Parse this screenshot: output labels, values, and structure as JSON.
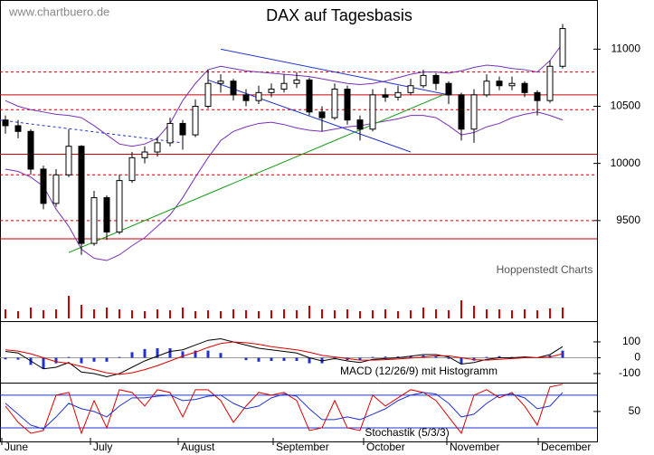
{
  "chart_data": {
    "type": "candlestick",
    "title": "DAX auf Tagesbasis",
    "source": "www.chartbuero.de",
    "credit": "Hoppenstedt Charts",
    "months": [
      "June",
      "July",
      "August",
      "September",
      "October",
      "November",
      "December"
    ],
    "ylim": [
      8620,
      11430
    ],
    "yticks": [
      9500,
      10000,
      10500,
      11000
    ],
    "candles": [
      [
        10380,
        10420,
        10260,
        10330
      ],
      [
        10330,
        10380,
        10220,
        10280
      ],
      [
        10280,
        10300,
        9900,
        9950
      ],
      [
        9950,
        9980,
        9600,
        9650
      ],
      [
        9650,
        9950,
        9620,
        9900
      ],
      [
        9900,
        10300,
        9880,
        10150
      ],
      [
        10150,
        10160,
        9200,
        9300
      ],
      [
        9300,
        9760,
        9280,
        9700
      ],
      [
        9700,
        9720,
        9330,
        9400
      ],
      [
        9400,
        9900,
        9380,
        9850
      ],
      [
        9850,
        10100,
        9830,
        10050
      ],
      [
        10050,
        10150,
        10000,
        10100
      ],
      [
        10100,
        10230,
        10060,
        10180
      ],
      [
        10180,
        10400,
        10150,
        10350
      ],
      [
        10350,
        10380,
        10120,
        10250
      ],
      [
        10250,
        10560,
        10230,
        10500
      ],
      [
        10500,
        10820,
        10480,
        10700
      ],
      [
        10700,
        10780,
        10620,
        10720
      ],
      [
        10720,
        10740,
        10550,
        10600
      ],
      [
        10600,
        10650,
        10500,
        10550
      ],
      [
        10550,
        10680,
        10520,
        10620
      ],
      [
        10620,
        10700,
        10580,
        10650
      ],
      [
        10650,
        10780,
        10620,
        10700
      ],
      [
        10700,
        10800,
        10660,
        10730
      ],
      [
        10730,
        10750,
        10420,
        10450
      ],
      [
        10450,
        10500,
        10280,
        10400
      ],
      [
        10400,
        10700,
        10380,
        10650
      ],
      [
        10650,
        10680,
        10340,
        10380
      ],
      [
        10380,
        10420,
        10200,
        10300
      ],
      [
        10300,
        10650,
        10280,
        10600
      ],
      [
        10600,
        10660,
        10540,
        10580
      ],
      [
        10580,
        10680,
        10550,
        10620
      ],
      [
        10620,
        10740,
        10600,
        10680
      ],
      [
        10680,
        10820,
        10660,
        10770
      ],
      [
        10770,
        10790,
        10640,
        10700
      ],
      [
        10700,
        10720,
        10520,
        10600
      ],
      [
        10600,
        10620,
        10200,
        10300
      ],
      [
        10300,
        10650,
        10180,
        10600
      ],
      [
        10600,
        10780,
        10580,
        10720
      ],
      [
        10720,
        10760,
        10640,
        10680
      ],
      [
        10680,
        10760,
        10640,
        10700
      ],
      [
        10700,
        10720,
        10580,
        10620
      ],
      [
        10620,
        10640,
        10420,
        10550
      ],
      [
        10550,
        10900,
        10530,
        10850
      ],
      [
        10850,
        11220,
        10830,
        11180
      ]
    ],
    "bollinger_upper": [
      10550,
      10500,
      10470,
      10450,
      10430,
      10420,
      10400,
      10330,
      10250,
      10170,
      10150,
      10170,
      10220,
      10350,
      10550,
      10700,
      10820,
      10850,
      10830,
      10810,
      10800,
      10790,
      10780,
      10770,
      10760,
      10740,
      10720,
      10700,
      10690,
      10700,
      10720,
      10750,
      10780,
      10800,
      10800,
      10790,
      10810,
      10840,
      10860,
      10850,
      10830,
      10820,
      10800,
      10900,
      11050
    ],
    "bollinger_lower": [
      9950,
      9930,
      9880,
      9800,
      9600,
      9450,
      9250,
      9170,
      9150,
      9200,
      9280,
      9350,
      9450,
      9550,
      9700,
      9880,
      10050,
      10200,
      10280,
      10320,
      10350,
      10360,
      10340,
      10310,
      10290,
      10280,
      10300,
      10320,
      10330,
      10350,
      10370,
      10390,
      10420,
      10420,
      10400,
      10330,
      10250,
      10270,
      10320,
      10350,
      10400,
      10430,
      10450,
      10420,
      10380
    ],
    "bollinger_color": "#7a2fb8",
    "solid_levels": [
      10600,
      10080,
      9340
    ],
    "dashed_levels": [
      10800,
      10470,
      9900,
      9500
    ],
    "level_color": "#cc0000",
    "trendlines": [
      {
        "color": "#119911",
        "points": [
          5,
          9220,
          35,
          10620
        ]
      },
      {
        "color": "#2233cc",
        "points": [
          -0.5,
          10380,
          14,
          10180
        ],
        "dashed": true
      },
      {
        "color": "#2233cc",
        "points": [
          17,
          11000,
          35,
          10600
        ]
      },
      {
        "color": "#2233cc",
        "points": [
          16,
          10730,
          32,
          10100
        ]
      }
    ],
    "volume": [
      10,
      8,
      12,
      9,
      10,
      25,
      15,
      10,
      12,
      10,
      9,
      8,
      10,
      9,
      12,
      8,
      9,
      8,
      10,
      9,
      8,
      9,
      10,
      9,
      14,
      10,
      9,
      10,
      8,
      9,
      10,
      8,
      9,
      12,
      10,
      9,
      20,
      14,
      10,
      10,
      9,
      10,
      9,
      11,
      12
    ],
    "volume_color": "#cc0000",
    "macd": {
      "label": "MACD (12/26/9) mit Histogramm",
      "ylim": [
        -157,
        231
      ],
      "yticks": [
        -100,
        0,
        100
      ],
      "macd": [
        40,
        30,
        -20,
        -70,
        -60,
        -30,
        -90,
        -100,
        -120,
        -100,
        -60,
        -20,
        10,
        40,
        50,
        80,
        110,
        120,
        100,
        80,
        60,
        50,
        40,
        30,
        0,
        -20,
        -5,
        -20,
        -30,
        -10,
        -5,
        0,
        10,
        20,
        20,
        5,
        -40,
        -30,
        -10,
        0,
        0,
        5,
        0,
        20,
        70
      ],
      "signal": [
        50,
        42,
        25,
        0,
        -25,
        -35,
        -55,
        -75,
        -95,
        -105,
        -95,
        -75,
        -50,
        -20,
        10,
        35,
        65,
        90,
        100,
        95,
        85,
        70,
        60,
        50,
        35,
        15,
        5,
        -5,
        -15,
        -15,
        -12,
        -8,
        -2,
        5,
        12,
        12,
        0,
        -12,
        -15,
        -10,
        -5,
        0,
        0,
        5,
        25
      ],
      "histogram": [
        -10,
        -12,
        -45,
        -70,
        -35,
        5,
        -35,
        -25,
        -25,
        5,
        35,
        55,
        60,
        60,
        40,
        45,
        45,
        30,
        0,
        -15,
        -25,
        -20,
        -20,
        -20,
        -35,
        -35,
        -10,
        -15,
        -15,
        5,
        7,
        8,
        12,
        15,
        8,
        -7,
        -40,
        -18,
        5,
        10,
        5,
        5,
        0,
        15,
        45
      ],
      "colors": [
        "#000000",
        "#dd0000",
        "#2233cc"
      ]
    },
    "stochastic": {
      "label": "Stochastik (5/3/3)",
      "ylim": [
        -5,
        103
      ],
      "yticks": [
        50
      ],
      "levels": [
        20,
        80
      ],
      "k": [
        60,
        30,
        10,
        15,
        80,
        85,
        10,
        70,
        20,
        90,
        85,
        60,
        90,
        85,
        40,
        90,
        90,
        70,
        30,
        60,
        85,
        80,
        85,
        70,
        15,
        20,
        70,
        20,
        15,
        80,
        60,
        75,
        90,
        85,
        70,
        40,
        10,
        80,
        90,
        75,
        85,
        60,
        25,
        95,
        100
      ],
      "d": [
        65,
        45,
        25,
        18,
        40,
        65,
        55,
        50,
        40,
        60,
        75,
        75,
        78,
        80,
        70,
        72,
        78,
        80,
        65,
        55,
        60,
        75,
        82,
        78,
        55,
        35,
        35,
        40,
        35,
        45,
        55,
        70,
        80,
        85,
        82,
        65,
        40,
        45,
        65,
        80,
        82,
        75,
        55,
        60,
        85
      ],
      "colors": [
        "#dd0000",
        "#2233cc"
      ]
    }
  }
}
